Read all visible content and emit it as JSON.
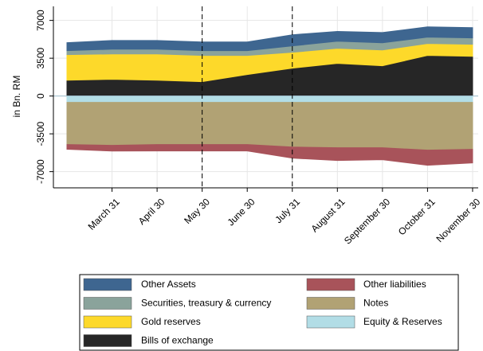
{
  "chart_data": {
    "type": "area",
    "y_label": "in Bn. RM",
    "categories": [
      null,
      "March 31",
      "April 30",
      "May 30",
      "June 30",
      "July 31",
      "August 31",
      "September 30",
      "October 31",
      "November 30"
    ],
    "ylim": [
      -8500,
      8300
    ],
    "yticks": [
      -7000,
      -3500,
      0,
      3500,
      7000
    ],
    "grid": true,
    "vlines": [
      3,
      5
    ],
    "legend": "bottom",
    "series": [
      {
        "name": "Other Assets",
        "color": "#3e6690",
        "values": [
          740,
          800,
          800,
          800,
          800,
          1030,
          900,
          950,
          950,
          950
        ]
      },
      {
        "name": "Other liabilities",
        "color": "#a8535a",
        "values": [
          -440,
          -520,
          -590,
          -590,
          -590,
          -1030,
          -1180,
          -1100,
          -1400,
          -1250
        ]
      },
      {
        "name": "Securities, treasury & currency",
        "color": "#8aa39b",
        "values": [
          370,
          440,
          440,
          440,
          440,
          590,
          660,
          660,
          590,
          590
        ]
      },
      {
        "name": "Notes",
        "color": "#b1a274",
        "values": [
          -3900,
          -3980,
          -3900,
          -3900,
          -3900,
          -4130,
          -4200,
          -4200,
          -4420,
          -4350
        ]
      },
      {
        "name": "Gold reserves",
        "color": "#fdd92a",
        "values": [
          2360,
          2350,
          2430,
          2430,
          1770,
          1470,
          1400,
          1470,
          1100,
          1110
        ]
      },
      {
        "name": "Equity & Reserves",
        "color": "#b2dde6",
        "values": [
          -590,
          -590,
          -590,
          -590,
          -590,
          -590,
          -590,
          -590,
          -590,
          -590
        ]
      },
      {
        "name": "Bills of exchange",
        "color": "#262626",
        "values": [
          1470,
          1550,
          1470,
          1330,
          1990,
          2580,
          3020,
          2800,
          3760,
          3680
        ]
      }
    ]
  }
}
